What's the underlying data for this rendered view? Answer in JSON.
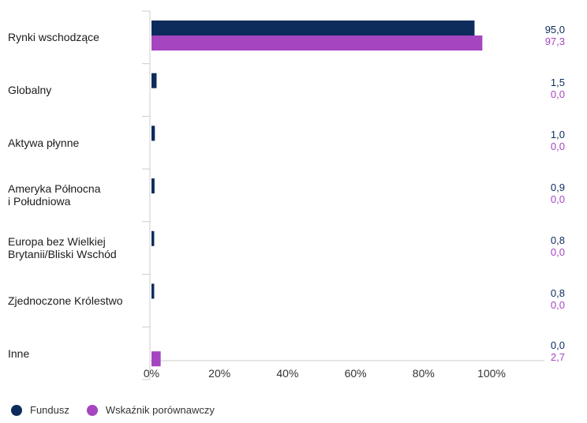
{
  "chart_data": {
    "type": "bar",
    "orientation": "horizontal",
    "categories": [
      "Rynki wschodzące",
      "Globalny",
      "Aktywa płynne",
      "Ameryka Północna\ni Południowa",
      "Europa bez Wielkiej\nBrytanii/Bliski Wschód",
      "Zjednoczone Królestwo",
      "Inne"
    ],
    "series": [
      {
        "name": "Fundusz",
        "color": "#0d2c5c",
        "values": [
          95.0,
          1.5,
          1.0,
          0.9,
          0.8,
          0.8,
          0.0
        ],
        "labels": [
          "95,0",
          "1,5",
          "1,0",
          "0,9",
          "0,8",
          "0,8",
          "0,0"
        ]
      },
      {
        "name": "Wskaźnik porównawczy",
        "color": "#a545c0",
        "values": [
          97.3,
          0.0,
          0.0,
          0.0,
          0.0,
          0.0,
          2.7
        ],
        "labels": [
          "97,3",
          "0,0",
          "0,0",
          "0,0",
          "0,0",
          "0,0",
          "2,7"
        ]
      }
    ],
    "xlim": [
      0,
      120
    ],
    "xticks": [
      "0%",
      "20%",
      "40%",
      "60%",
      "80%",
      "100%"
    ],
    "xtick_values": [
      0,
      20,
      40,
      60,
      80,
      100
    ],
    "legend": "bottom-left"
  }
}
